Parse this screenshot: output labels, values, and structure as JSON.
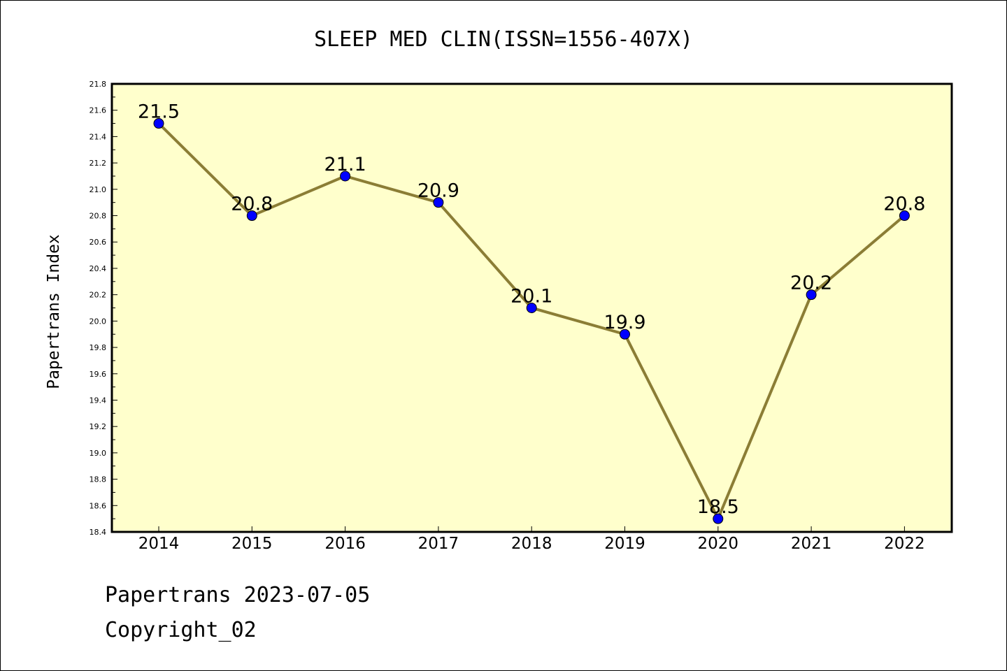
{
  "chart_data": {
    "type": "line",
    "title": "SLEEP MED CLIN(ISSN=1556-407X)",
    "ylabel": "Papertrans Index",
    "xlabel": "",
    "categories": [
      "2014",
      "2015",
      "2016",
      "2017",
      "2018",
      "2019",
      "2020",
      "2021",
      "2022"
    ],
    "series": [
      {
        "values": [
          21.5,
          20.8,
          21.1,
          20.9,
          20.1,
          19.9,
          18.5,
          20.2,
          20.8
        ]
      }
    ],
    "data_labels": [
      "21.5",
      "20.8",
      "21.1",
      "20.9",
      "20.1",
      "19.9",
      "18.5",
      "20.2",
      "20.8"
    ],
    "ylim": [
      18.4,
      21.8
    ],
    "yticks": [
      "18.4",
      "18.6",
      "18.8",
      "19.0",
      "19.2",
      "19.4",
      "19.6",
      "19.8",
      "20.0",
      "20.2",
      "20.4",
      "20.6",
      "20.8",
      "21.0",
      "21.2",
      "21.4",
      "21.6",
      "21.8"
    ],
    "grid": false,
    "colors": {
      "plot_background": "#ffffcc",
      "line": "#8b7d35",
      "marker": "#0000ff"
    }
  },
  "footer": {
    "line1": "Papertrans 2023-07-05",
    "line2": "Copyright_02"
  }
}
